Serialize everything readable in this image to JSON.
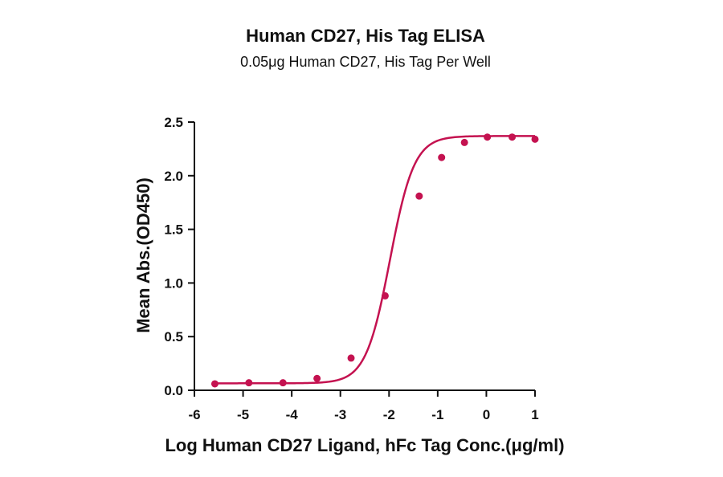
{
  "chart_data": {
    "type": "scatter",
    "title": "Human CD27, His Tag ELISA",
    "subtitle": "0.05μg Human CD27, His Tag Per Well",
    "xlabel": "Log Human CD27 Ligand, hFc Tag Conc.(μg/ml)",
    "ylabel": "Mean Abs.(OD450)",
    "xlim": [
      -6,
      1
    ],
    "ylim": [
      0,
      2.5
    ],
    "xticks": [
      -6,
      -5,
      -4,
      -3,
      -2,
      -1,
      0,
      1
    ],
    "yticks": [
      0.0,
      0.5,
      1.0,
      1.5,
      2.0,
      2.5
    ],
    "xtick_labels": [
      "-6",
      "-5",
      "-4",
      "-3",
      "-2",
      "-1",
      "0",
      "1"
    ],
    "ytick_labels": [
      "0.0",
      "0.5",
      "1.0",
      "1.5",
      "2.0",
      "2.5"
    ],
    "grid": false,
    "color": "#c41250",
    "series": [
      {
        "points": [
          {
            "x": -5.58,
            "y": 0.06
          },
          {
            "x": -4.88,
            "y": 0.07
          },
          {
            "x": -4.18,
            "y": 0.07
          },
          {
            "x": -3.48,
            "y": 0.11
          },
          {
            "x": -2.78,
            "y": 0.3
          },
          {
            "x": -2.08,
            "y": 0.88
          },
          {
            "x": -1.38,
            "y": 1.81
          },
          {
            "x": -0.92,
            "y": 2.17
          },
          {
            "x": -0.45,
            "y": 2.31
          },
          {
            "x": 0.02,
            "y": 2.36
          },
          {
            "x": 0.53,
            "y": 2.36
          },
          {
            "x": 1.0,
            "y": 2.34
          }
        ],
        "fit": {
          "model": "4PL",
          "bottom": 0.065,
          "top": 2.37,
          "log_ec50": -1.98,
          "hill": 1.75
        }
      }
    ]
  }
}
